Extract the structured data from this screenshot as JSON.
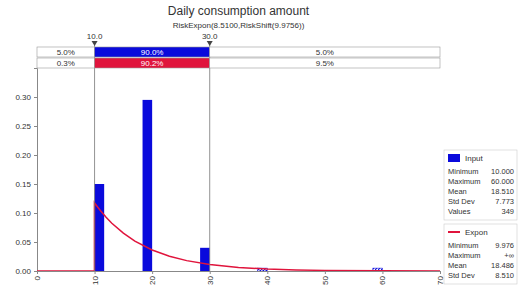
{
  "chart_data": {
    "type": "histogram",
    "title": "Daily consumption amount",
    "subtitle": "RiskExpon(8.5100,RiskShift(9.9756))",
    "legend": "right",
    "xlim": [
      0,
      70
    ],
    "xticks": [
      0,
      10,
      20,
      30,
      40,
      50,
      60,
      70
    ],
    "ylim": [
      0,
      0.35
    ],
    "yticks": [
      {
        "value": 0,
        "label": "0.00"
      },
      {
        "value": 0.05,
        "label": "0.05"
      },
      {
        "value": 0.1,
        "label": "0.10"
      },
      {
        "value": 0.15,
        "label": "0.15"
      },
      {
        "value": 0.2,
        "label": "0.20"
      },
      {
        "value": 0.25,
        "label": "0.25"
      },
      {
        "value": 0.3,
        "label": "0.30"
      }
    ],
    "delimiters": [
      {
        "value": 10,
        "label": "10.0"
      },
      {
        "value": 30,
        "label": "30.0"
      }
    ],
    "delimiter_bands": [
      {
        "name": "Input",
        "values": [
          5,
          90,
          5
        ],
        "value_labels": [
          "5.0%",
          "90.0%",
          "5.0%"
        ]
      },
      {
        "name": "Expon",
        "values": [
          0.3,
          90.2,
          9.5
        ],
        "value_labels": [
          "0.3%",
          "90.2%",
          "9.5%"
        ]
      }
    ],
    "series": [
      {
        "name": "Input",
        "type": "histogram",
        "color": "#0a0adc",
        "bins": [
          10,
          11.667,
          13.333,
          15,
          16.667,
          18.333,
          20,
          21.667,
          23.333,
          25,
          26.667,
          28.333,
          30,
          31.667,
          33.333,
          35,
          36.667,
          38.333,
          40,
          41.667,
          43.333,
          45,
          46.667,
          48.333,
          50,
          51.667,
          53.333,
          55,
          56.667,
          58.333,
          60
        ],
        "values": [
          0.15,
          0,
          0,
          0,
          0,
          0.295,
          0,
          0,
          0,
          0,
          0,
          0.04,
          0,
          0,
          0,
          0,
          0,
          0.005,
          0,
          0,
          0,
          0,
          0,
          0,
          0,
          0,
          0,
          0,
          0,
          0.005
        ],
        "stats": [
          {
            "name": "Minimum",
            "value": 10,
            "label": "10.000"
          },
          {
            "name": "Maximum",
            "value": 60,
            "label": "60.000"
          },
          {
            "name": "Mean",
            "value": 18.51,
            "label": "18.510"
          },
          {
            "name": "Std Dev",
            "value": 7.773,
            "label": "7.773"
          },
          {
            "name": "Values",
            "value": 349
          }
        ]
      },
      {
        "name": "Expon",
        "type": "line",
        "color": "#e0143c",
        "x": [
          0,
          9.9756,
          9.9756,
          10,
          11,
          12,
          13,
          15,
          17,
          20,
          23,
          26,
          30,
          35,
          40,
          45,
          50,
          60,
          70
        ],
        "values": [
          0,
          0,
          0.1175,
          0.1171,
          0.1042,
          0.0926,
          0.0824,
          0.0654,
          0.0515,
          0.0362,
          0.0254,
          0.0179,
          0.0111,
          0.0061,
          0.0034,
          0.0019,
          0.001,
          0.0003,
          0.0001
        ],
        "stats": [
          {
            "name": "Minimum",
            "value": 9.976,
            "label": "9.976"
          },
          {
            "name": "Maximum",
            "label": "+∞"
          },
          {
            "name": "Mean",
            "value": 18.486,
            "label": "18.486"
          },
          {
            "name": "Std Dev",
            "value": 8.51,
            "label": "8.510"
          }
        ]
      }
    ]
  }
}
